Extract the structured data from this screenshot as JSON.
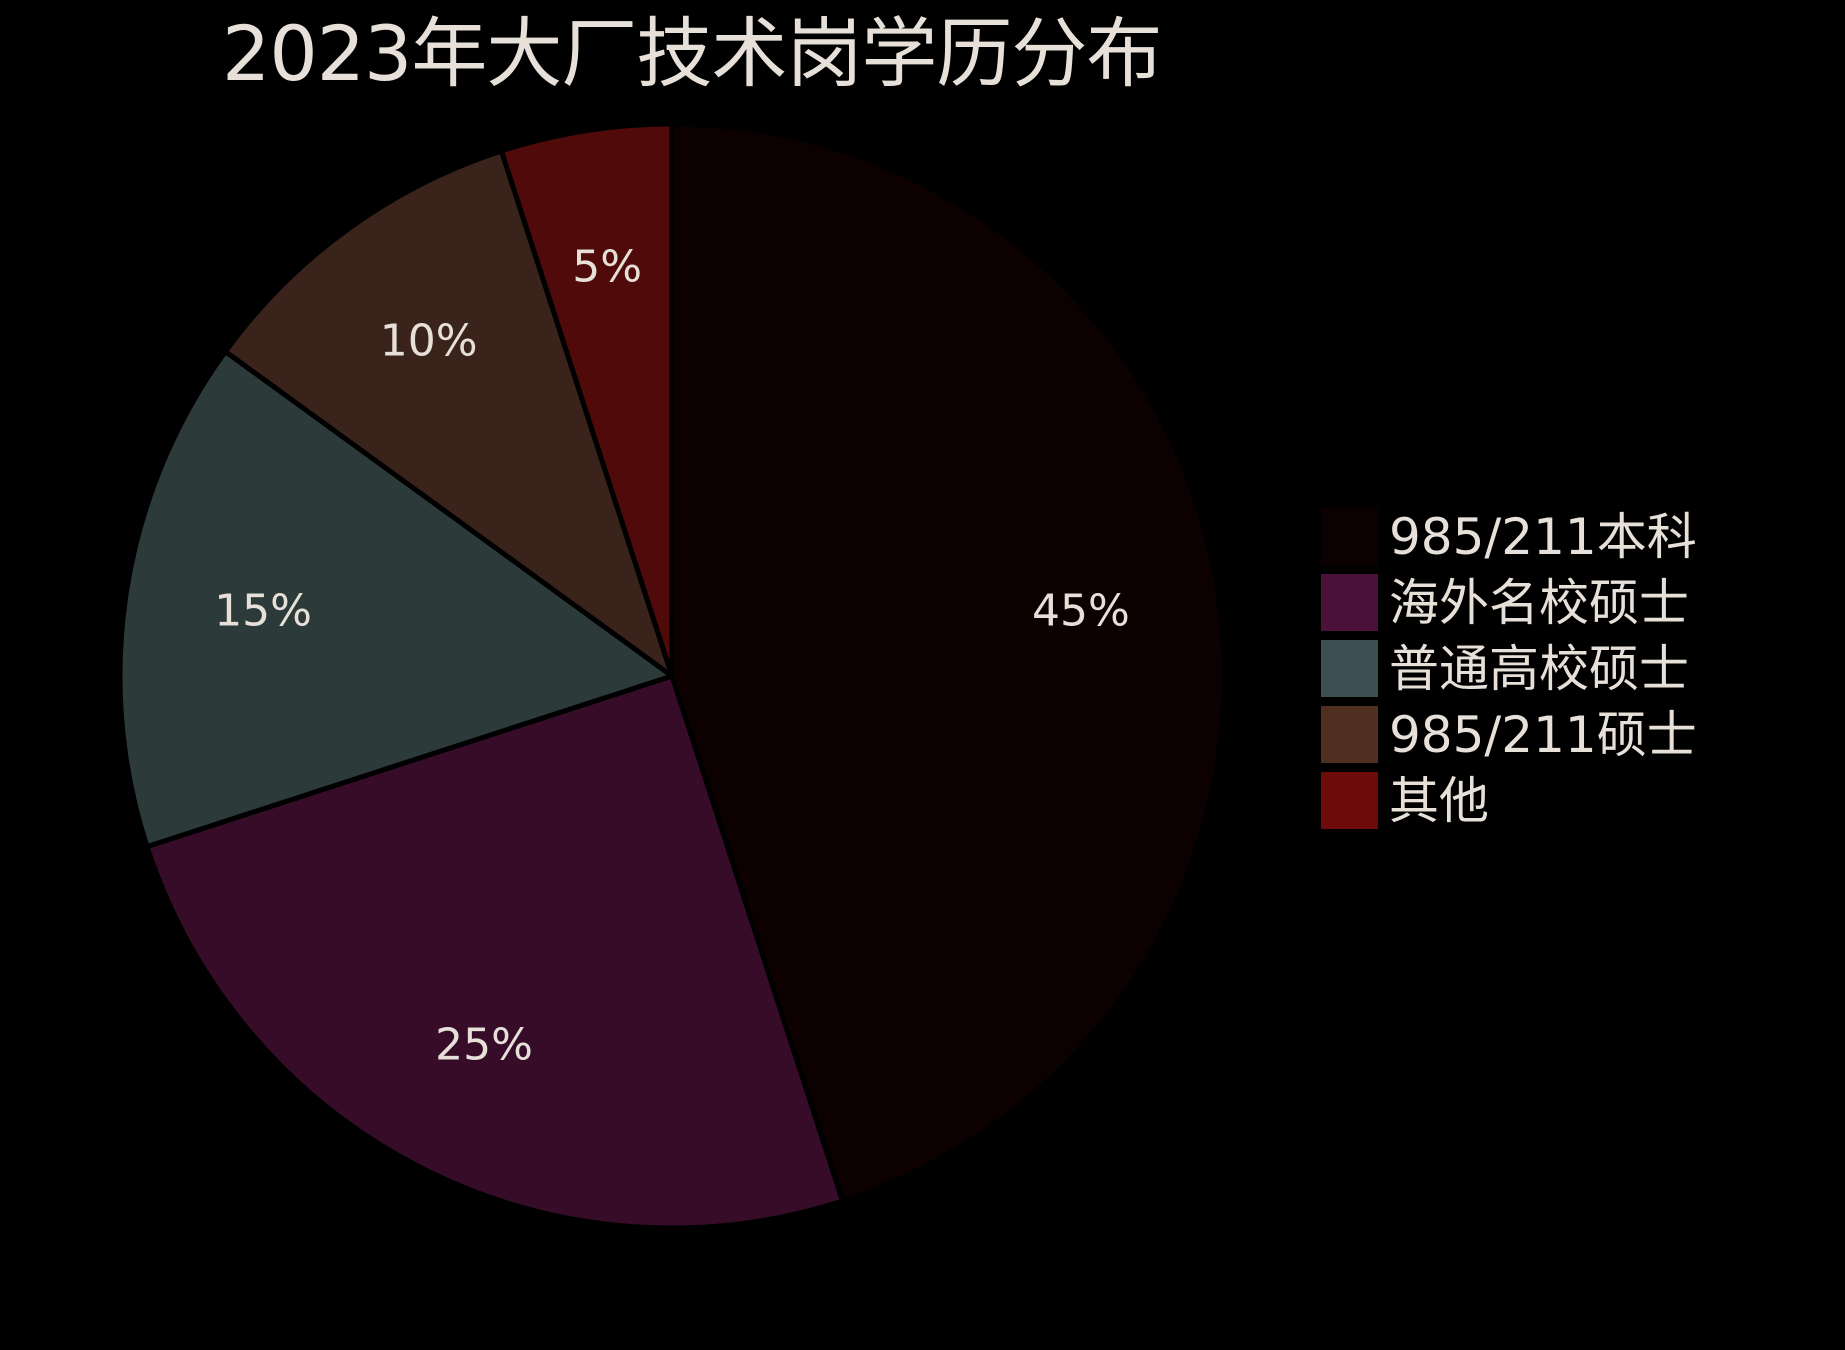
{
  "chart_data": {
    "type": "pie",
    "title": "2023年大厂技术岗学历分布",
    "categories": [
      "985/211本科",
      "海外名校硕士",
      "普通高校硕士",
      "985/211硕士",
      "其他"
    ],
    "values": [
      45,
      25,
      15,
      10,
      5
    ],
    "value_labels": [
      "45%",
      "25%",
      "15%",
      "10%",
      "5%"
    ],
    "colors": [
      "#0c0000",
      "#370c29",
      "#2c3a3a",
      "#39231a",
      "#510a0a"
    ],
    "legend_colors": [
      "#0c0000",
      "#4a1238",
      "#3e4f53",
      "#4f2f20",
      "#6d0a0a"
    ],
    "start_angle": "top",
    "direction": "clockwise",
    "legend_position": "right"
  }
}
